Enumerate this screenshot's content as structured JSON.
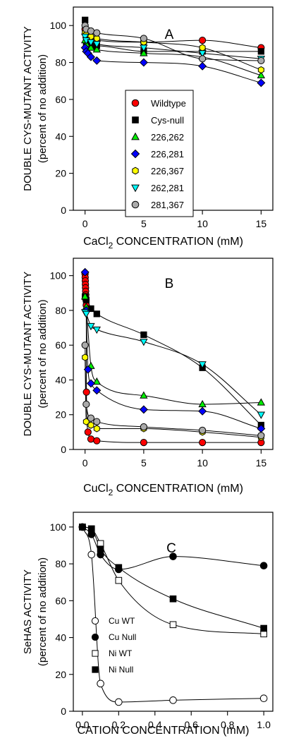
{
  "chart_data": [
    {
      "type": "line",
      "panel_label": "A",
      "ylabel": [
        "DOUBLE CYS-MUTANT ACTIVITY",
        "(percent of no addition)"
      ],
      "xlabel_parts": [
        "CaCl",
        "2",
        " CONCENTRATION (mM)"
      ],
      "xlim": [
        -1,
        16
      ],
      "ylim": [
        0,
        110
      ],
      "xticks": [
        0,
        5,
        10,
        15
      ],
      "yticks": [
        0,
        20,
        40,
        60,
        80,
        100
      ],
      "grid": false,
      "legend_position": "center",
      "series": [
        {
          "name": "Wildtype",
          "marker": "circle",
          "color": "#ff0000",
          "points": [
            [
              0,
              98
            ],
            [
              0.05,
              96
            ],
            [
              0.1,
              94
            ],
            [
              0.25,
              93
            ],
            [
              0.5,
              93
            ],
            [
              1,
              92
            ],
            [
              5,
              91
            ],
            [
              10,
              92
            ],
            [
              15,
              88
            ]
          ]
        },
        {
          "name": "Cys-null",
          "marker": "square",
          "color": "#000000",
          "points": [
            [
              0,
              103
            ],
            [
              0.1,
              91
            ],
            [
              0.25,
              90
            ],
            [
              0.5,
              89
            ],
            [
              1,
              89
            ],
            [
              5,
              86
            ],
            [
              10,
              86
            ],
            [
              15,
              86
            ]
          ]
        },
        {
          "name": "226,262",
          "marker": "triangle-up",
          "color": "#00ee00",
          "points": [
            [
              0,
              92
            ],
            [
              0.1,
              90
            ],
            [
              0.5,
              88
            ],
            [
              1,
              87
            ],
            [
              5,
              85
            ],
            [
              10,
              83
            ],
            [
              15,
              73
            ]
          ]
        },
        {
          "name": "226,281",
          "marker": "diamond",
          "color": "#0000ff",
          "points": [
            [
              0,
              88
            ],
            [
              0.1,
              86
            ],
            [
              0.25,
              85
            ],
            [
              0.5,
              83
            ],
            [
              1,
              81
            ],
            [
              5,
              80
            ],
            [
              10,
              78
            ],
            [
              15,
              69
            ]
          ]
        },
        {
          "name": "226,367",
          "marker": "hexagon",
          "color": "#ffff00",
          "points": [
            [
              0,
              96
            ],
            [
              0.1,
              95
            ],
            [
              0.5,
              94
            ],
            [
              1,
              93
            ],
            [
              5,
              91
            ],
            [
              10,
              88
            ],
            [
              15,
              76
            ]
          ]
        },
        {
          "name": "262,281",
          "marker": "triangle-down",
          "color": "#00ffff",
          "points": [
            [
              0,
              94
            ],
            [
              0.1,
              92
            ],
            [
              0.5,
              91
            ],
            [
              1,
              90
            ],
            [
              5,
              88
            ],
            [
              10,
              85
            ],
            [
              15,
              82
            ]
          ]
        },
        {
          "name": "281,367",
          "marker": "circle",
          "color": "#aaaaaa",
          "points": [
            [
              0,
              100
            ],
            [
              0.1,
              98
            ],
            [
              0.5,
              97
            ],
            [
              1,
              96
            ],
            [
              5,
              93
            ],
            [
              10,
              82
            ],
            [
              15,
              81
            ]
          ]
        }
      ]
    },
    {
      "type": "line",
      "panel_label": "B",
      "ylabel": [
        "DOUBLE CYS-MUTANT ACTIVITY",
        "(percent of no addition)"
      ],
      "xlabel_parts": [
        "CuCl",
        "2",
        " CONCENTRATION (mM)"
      ],
      "xlim": [
        -1,
        16
      ],
      "ylim": [
        0,
        110
      ],
      "xticks": [
        0,
        5,
        10,
        15
      ],
      "yticks": [
        0,
        20,
        40,
        60,
        80,
        100
      ],
      "grid": false,
      "series": [
        {
          "name": "Wildtype",
          "marker": "circle",
          "color": "#ff0000",
          "points": [
            [
              0,
              101
            ],
            [
              0.01,
              99
            ],
            [
              0.02,
              97
            ],
            [
              0.03,
              95
            ],
            [
              0.04,
              93
            ],
            [
              0.05,
              91
            ],
            [
              0.06,
              89
            ],
            [
              0.08,
              86
            ],
            [
              0.1,
              83
            ],
            [
              0.12,
              33
            ],
            [
              0.25,
              10
            ],
            [
              0.5,
              6
            ],
            [
              1,
              5
            ],
            [
              5,
              4
            ],
            [
              10,
              4
            ],
            [
              15,
              4
            ]
          ]
        },
        {
          "name": "Cys-null",
          "marker": "square",
          "color": "#000000",
          "points": [
            [
              0,
              88
            ],
            [
              0.1,
              86
            ],
            [
              0.5,
              81
            ],
            [
              1,
              78
            ],
            [
              5,
              66
            ],
            [
              10,
              47
            ],
            [
              15,
              14
            ]
          ]
        },
        {
          "name": "226,262",
          "marker": "triangle-up",
          "color": "#00ee00",
          "points": [
            [
              0,
              88
            ],
            [
              0.1,
              82
            ],
            [
              0.5,
              48
            ],
            [
              1,
              39
            ],
            [
              5,
              31
            ],
            [
              10,
              26
            ],
            [
              15,
              27
            ]
          ]
        },
        {
          "name": "226,281",
          "marker": "diamond",
          "color": "#0000ff",
          "points": [
            [
              0,
              102
            ],
            [
              0.1,
              80
            ],
            [
              0.25,
              46
            ],
            [
              0.5,
              38
            ],
            [
              1,
              34
            ],
            [
              5,
              23
            ],
            [
              10,
              22
            ],
            [
              15,
              12
            ]
          ]
        },
        {
          "name": "226,367",
          "marker": "hexagon",
          "color": "#ffff00",
          "points": [
            [
              0,
              53
            ],
            [
              0.1,
              16
            ],
            [
              0.5,
              14
            ],
            [
              1,
              12
            ],
            [
              5,
              12
            ],
            [
              10,
              10
            ],
            [
              15,
              7
            ]
          ]
        },
        {
          "name": "262,281",
          "marker": "triangle-down",
          "color": "#00ffff",
          "points": [
            [
              0,
              79
            ],
            [
              0.1,
              78
            ],
            [
              0.5,
              71
            ],
            [
              1,
              69
            ],
            [
              5,
              62
            ],
            [
              10,
              49
            ],
            [
              15,
              20
            ]
          ]
        },
        {
          "name": "281,367",
          "marker": "circle",
          "color": "#aaaaaa",
          "points": [
            [
              0,
              60
            ],
            [
              0.1,
              26
            ],
            [
              0.5,
              18
            ],
            [
              1,
              16
            ],
            [
              5,
              13
            ],
            [
              10,
              11
            ],
            [
              15,
              8
            ]
          ]
        }
      ]
    },
    {
      "type": "line",
      "panel_label": "C",
      "ylabel": [
        "SeHAS ACTIVITY",
        "(percent of no addition)"
      ],
      "xlabel_parts": [
        "CATION CONCENTRATION (mM)"
      ],
      "xlim": [
        -0.05,
        1.05
      ],
      "ylim": [
        0,
        108
      ],
      "xticks": [
        0,
        0.2,
        0.4,
        0.6,
        0.8,
        1.0
      ],
      "xtick_labels": [
        "0.0",
        "0.2",
        "0.4",
        "0.6",
        "0.8",
        "1.0"
      ],
      "yticks": [
        0,
        20,
        40,
        60,
        80,
        100
      ],
      "grid": false,
      "legend_position": "lower-left",
      "series": [
        {
          "name": "Cu WT",
          "marker": "circle-open",
          "color": "#000000",
          "points": [
            [
              0,
              100
            ],
            [
              0.05,
              85
            ],
            [
              0.1,
              15
            ],
            [
              0.2,
              5
            ],
            [
              0.5,
              6
            ],
            [
              1.0,
              7
            ]
          ]
        },
        {
          "name": "Cu Null",
          "marker": "circle",
          "color": "#000000",
          "points": [
            [
              0,
              100
            ],
            [
              0.05,
              96
            ],
            [
              0.1,
              85
            ],
            [
              0.2,
              77
            ],
            [
              0.5,
              84
            ],
            [
              1.0,
              79
            ]
          ]
        },
        {
          "name": "Ni WT",
          "marker": "square-open",
          "color": "#000000",
          "points": [
            [
              0,
              100
            ],
            [
              0.05,
              99
            ],
            [
              0.1,
              91
            ],
            [
              0.2,
              71
            ],
            [
              0.5,
              47
            ],
            [
              1.0,
              42
            ]
          ]
        },
        {
          "name": "Ni Null",
          "marker": "square",
          "color": "#000000",
          "points": [
            [
              0,
              100
            ],
            [
              0.05,
              99
            ],
            [
              0.1,
              88
            ],
            [
              0.2,
              78
            ],
            [
              0.5,
              61
            ],
            [
              1.0,
              45
            ]
          ]
        }
      ]
    }
  ]
}
